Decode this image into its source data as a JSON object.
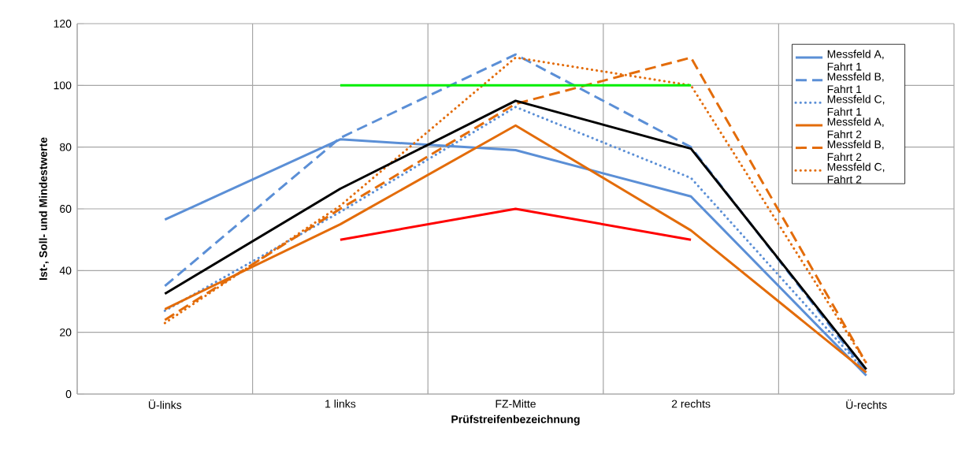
{
  "chart_data": {
    "type": "line",
    "xlabel": "Prüfstreifenbezeichnung",
    "ylabel": "Ist-, Soll- und Mindestwerte",
    "categories": [
      "Ü-links",
      "1 links",
      "FZ-Mitte",
      "2 rechts",
      "Ü-rechts"
    ],
    "ylim": [
      0,
      120
    ],
    "yticks": [
      0,
      20,
      40,
      60,
      80,
      100,
      120
    ],
    "grid": true,
    "legend": "top right",
    "series": [
      {
        "name": "Messfeld A, Fahrt 1",
        "color": "#5b8fd6",
        "line_style": "solid",
        "values": [
          56.5,
          82.5,
          79,
          64,
          6
        ]
      },
      {
        "name": "Messfeld B, Fahrt 1",
        "color": "#5b8fd6",
        "line_style": "dashed",
        "values": [
          35,
          83,
          110,
          80,
          7
        ]
      },
      {
        "name": "Messfeld C, Fahrt 1",
        "color": "#5b8fd6",
        "line_style": "dotted",
        "values": [
          27,
          59,
          93,
          70,
          7
        ]
      },
      {
        "name": "Messfeld A, Fahrt 2",
        "color": "#e36c0a",
        "line_style": "solid",
        "values": [
          27.5,
          55,
          87,
          53,
          7
        ]
      },
      {
        "name": "Messfeld B, Fahrt 2",
        "color": "#e36c0a",
        "line_style": "dashed",
        "values": [
          24,
          60,
          94,
          109,
          10
        ]
      },
      {
        "name": "Messfeld C, Fahrt 2",
        "color": "#e36c0a",
        "line_style": "dotted",
        "values": [
          23,
          61,
          109,
          100,
          10
        ]
      },
      {
        "color": "#000000",
        "line_style": "solid",
        "values": [
          32.5,
          66.5,
          95,
          79.5,
          8
        ]
      },
      {
        "color": "#00ee00",
        "line_style": "solid",
        "values": [
          null,
          100,
          100,
          100,
          null
        ]
      },
      {
        "color": "#ff0000",
        "line_style": "solid",
        "values": [
          null,
          50,
          60,
          50,
          null
        ]
      }
    ]
  }
}
